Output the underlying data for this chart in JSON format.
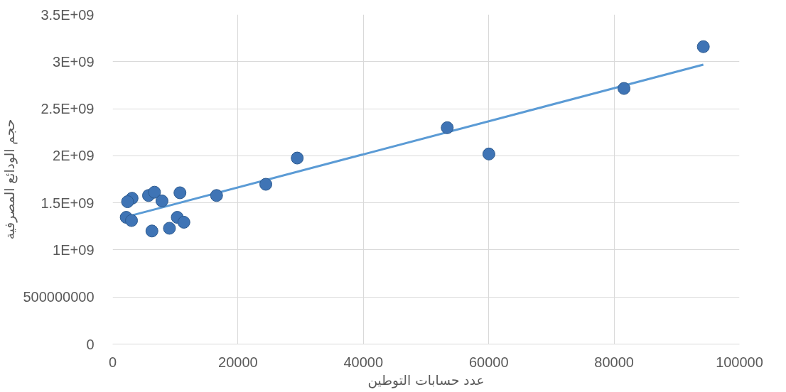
{
  "chart_data": {
    "type": "scatter",
    "xlabel": "عدد حسابات التوطين",
    "ylabel": "حجم الودائع المصرفية",
    "xlim": [
      0,
      100000
    ],
    "xticks": [
      0,
      20000,
      40000,
      60000,
      80000,
      100000
    ],
    "ylim": [
      0,
      3500000000
    ],
    "yticks": [
      {
        "value": 0,
        "label": "0"
      },
      {
        "value": 500000000,
        "label": "500000000"
      },
      {
        "value": 1000000000,
        "label": "1E+09"
      },
      {
        "value": 1500000000,
        "label": "1.5E+09"
      },
      {
        "value": 2000000000,
        "label": "2E+09"
      },
      {
        "value": 2500000000,
        "label": "2.5E+09"
      },
      {
        "value": 3000000000,
        "label": "3E+09"
      },
      {
        "value": 3500000000,
        "label": "3.5E+09"
      }
    ],
    "grid": true,
    "series": [
      {
        "color": "#3f74b5",
        "marker": "circle",
        "x": [
          3095,
          2381,
          2168,
          3008,
          5727,
          6679,
          7870,
          10740,
          6266,
          9060,
          10313,
          11366,
          16579,
          24436,
          29450,
          53383,
          60025,
          81579,
          94236
        ],
        "values": [
          1549000000,
          1512000000,
          1346000000,
          1312000000,
          1578000000,
          1613000000,
          1520000000,
          1607000000,
          1201000000,
          1230000000,
          1346000000,
          1294000000,
          1578000000,
          1697000000,
          1976000000,
          2298000000,
          2019000000,
          2715000000,
          3159000000
        ]
      },
      {
        "type": "line",
        "color": "#5b9bd5",
        "line_style": "solid",
        "marker": "none",
        "x": [
          2168,
          94236
        ],
        "values": [
          1351000000,
          2968000000
        ]
      }
    ]
  }
}
